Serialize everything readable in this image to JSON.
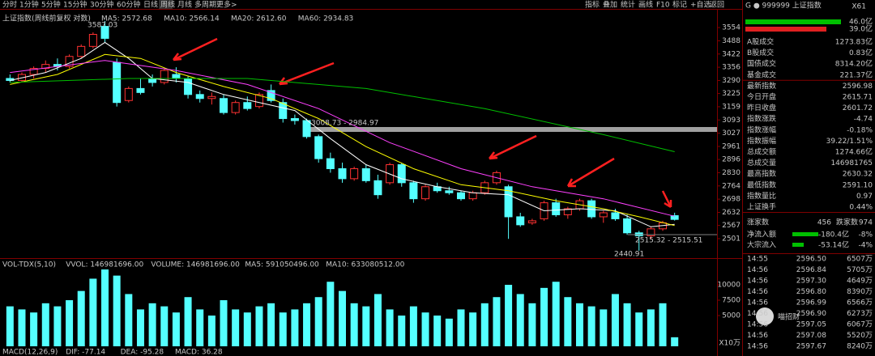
{
  "toolbar": {
    "left": [
      "分时",
      "1分钟",
      "5分钟",
      "15分钟",
      "30分钟",
      "60分钟",
      "日线",
      "周线",
      "月线",
      "多周期",
      "更多>"
    ],
    "active": 7,
    "right": [
      "指标",
      "叠加",
      "统计",
      "画线",
      "F10",
      "标记",
      "+自选",
      "返回"
    ]
  },
  "chart": {
    "title": "上证指数(周线前复权 对数)",
    "ma_labels": [
      {
        "text": "MA5: 2572.68",
        "color": "#ffffff"
      },
      {
        "text": "MA10: 2566.14",
        "color": "#ffff00"
      },
      {
        "text": "MA20: 2612.60",
        "color": "#ff40ff"
      },
      {
        "text": "MA60: 2934.83",
        "color": "#00e000"
      }
    ],
    "ylim": [
      2408,
      3643
    ],
    "yticks": [
      3554,
      3488,
      3422,
      3356,
      3290,
      3225,
      3159,
      3093,
      3027,
      2961,
      2896,
      2830,
      2764,
      2698,
      2632,
      2567,
      2501
    ],
    "candles": [
      [
        3300,
        3320,
        3280,
        3290
      ],
      [
        3290,
        3330,
        3285,
        3320
      ],
      [
        3320,
        3360,
        3300,
        3350
      ],
      [
        3350,
        3390,
        3330,
        3370
      ],
      [
        3370,
        3400,
        3340,
        3360
      ],
      [
        3360,
        3420,
        3350,
        3410
      ],
      [
        3410,
        3470,
        3400,
        3460
      ],
      [
        3460,
        3530,
        3450,
        3520
      ],
      [
        3560,
        3587.03,
        3480,
        3500
      ],
      [
        3380,
        3400,
        3160,
        3180
      ],
      [
        3190,
        3260,
        3180,
        3250
      ],
      [
        3250,
        3300,
        3220,
        3230
      ],
      [
        3300,
        3320,
        3260,
        3280
      ],
      [
        3280,
        3350,
        3270,
        3340
      ],
      [
        3320,
        3356,
        3280,
        3300
      ],
      [
        3300,
        3310,
        3200,
        3220
      ],
      [
        3220,
        3240,
        3180,
        3200
      ],
      [
        3200,
        3230,
        3170,
        3210
      ],
      [
        3200,
        3220,
        3120,
        3130
      ],
      [
        3130,
        3190,
        3120,
        3180
      ],
      [
        3180,
        3210,
        3140,
        3150
      ],
      [
        3160,
        3230,
        3150,
        3220
      ],
      [
        3240,
        3270,
        3180,
        3190
      ],
      [
        3180,
        3200,
        3080,
        3100
      ],
      [
        3100,
        3120,
        3070,
        3090
      ],
      [
        3090,
        3100,
        3000,
        3010
      ],
      [
        3010,
        3020,
        2880,
        2900
      ],
      [
        2900,
        2930,
        2830,
        2850
      ],
      [
        2850,
        2880,
        2780,
        2800
      ],
      [
        2800,
        2860,
        2790,
        2850
      ],
      [
        2850,
        2870,
        2780,
        2790
      ],
      [
        2790,
        2820,
        2700,
        2720
      ],
      [
        2780,
        2880,
        2770,
        2870
      ],
      [
        2870,
        2880,
        2760,
        2780
      ],
      [
        2780,
        2790,
        2680,
        2700
      ],
      [
        2700,
        2770,
        2690,
        2760
      ],
      [
        2760,
        2780,
        2730,
        2740
      ],
      [
        2740,
        2760,
        2720,
        2730
      ],
      [
        2730,
        2740,
        2690,
        2700
      ],
      [
        2700,
        2740,
        2690,
        2730
      ],
      [
        2730,
        2790,
        2720,
        2780
      ],
      [
        2780,
        2840,
        2770,
        2830
      ],
      [
        2760,
        2770,
        2500,
        2610
      ],
      [
        2610,
        2630,
        2560,
        2570
      ],
      [
        2580,
        2600,
        2570,
        2590
      ],
      [
        2600,
        2690,
        2590,
        2680
      ],
      [
        2680,
        2700,
        2610,
        2620
      ],
      [
        2620,
        2660,
        2600,
        2650
      ],
      [
        2650,
        2700,
        2640,
        2690
      ],
      [
        2690,
        2700,
        2600,
        2610
      ],
      [
        2610,
        2640,
        2580,
        2630
      ],
      [
        2630,
        2650,
        2590,
        2600
      ],
      [
        2600,
        2620,
        2520,
        2530
      ],
      [
        2530,
        2540,
        2440.91,
        2515.32
      ],
      [
        2515,
        2560,
        2500,
        2550
      ],
      [
        2550,
        2590,
        2540,
        2580
      ],
      [
        2615.71,
        2630.32,
        2591.1,
        2596.98
      ]
    ],
    "up_color": "#ff3232",
    "down_color": "#54ffff",
    "ma_lines": [
      {
        "color": "#ffffff",
        "points": [
          [
            0,
            3290
          ],
          [
            3,
            3330
          ],
          [
            6,
            3400
          ],
          [
            8,
            3480
          ],
          [
            10,
            3400
          ],
          [
            12,
            3300
          ],
          [
            15,
            3280
          ],
          [
            18,
            3220
          ],
          [
            21,
            3180
          ],
          [
            24,
            3140
          ],
          [
            27,
            3000
          ],
          [
            30,
            2870
          ],
          [
            33,
            2800
          ],
          [
            36,
            2760
          ],
          [
            39,
            2730
          ],
          [
            42,
            2720
          ],
          [
            45,
            2640
          ],
          [
            48,
            2650
          ],
          [
            51,
            2640
          ],
          [
            54,
            2560
          ],
          [
            56,
            2572.68
          ]
        ]
      },
      {
        "color": "#ffff00",
        "points": [
          [
            0,
            3270
          ],
          [
            4,
            3320
          ],
          [
            8,
            3420
          ],
          [
            11,
            3400
          ],
          [
            14,
            3330
          ],
          [
            18,
            3260
          ],
          [
            22,
            3200
          ],
          [
            26,
            3100
          ],
          [
            30,
            2960
          ],
          [
            34,
            2850
          ],
          [
            38,
            2770
          ],
          [
            42,
            2740
          ],
          [
            46,
            2690
          ],
          [
            50,
            2650
          ],
          [
            53,
            2610
          ],
          [
            56,
            2566.14
          ]
        ]
      },
      {
        "color": "#ff40ff",
        "points": [
          [
            0,
            3330
          ],
          [
            8,
            3390
          ],
          [
            14,
            3340
          ],
          [
            20,
            3270
          ],
          [
            26,
            3150
          ],
          [
            32,
            2980
          ],
          [
            38,
            2850
          ],
          [
            44,
            2760
          ],
          [
            50,
            2700
          ],
          [
            56,
            2612.6
          ]
        ]
      },
      {
        "color": "#00c000",
        "points": [
          [
            0,
            3280
          ],
          [
            10,
            3300
          ],
          [
            20,
            3300
          ],
          [
            30,
            3250
          ],
          [
            40,
            3150
          ],
          [
            50,
            3020
          ],
          [
            56,
            2934.83
          ]
        ]
      }
    ],
    "annotations": [
      "3587.03",
      "3008.73 - 2984.97",
      "2515.32 - 2515.51",
      "2440.91"
    ]
  },
  "volume": {
    "header": [
      "VOL-TDX(5,10)",
      "VVOL: 146981696.00",
      "VOLUME: 146981696.00",
      "MA5: 591050496.00",
      "MA10: 633080512.00"
    ],
    "ylim": [
      0,
      12900
    ],
    "yticks": [
      10000,
      7500,
      5000
    ],
    "unit": "X10万",
    "color": "#54ffff",
    "values": [
      6500,
      6000,
      5500,
      7000,
      6500,
      7500,
      9000,
      11000,
      12500,
      11500,
      8500,
      6000,
      7000,
      6500,
      5500,
      8000,
      6000,
      5000,
      7500,
      6000,
      5500,
      6500,
      7000,
      5500,
      6000,
      7000,
      8000,
      10500,
      9000,
      7000,
      6500,
      8500,
      6000,
      5000,
      6500,
      5500,
      5000,
      4500,
      6000,
      5500,
      7000,
      8000,
      10000,
      8500,
      7000,
      9500,
      10500,
      8000,
      7000,
      6500,
      6000,
      8500,
      7000,
      5500,
      6000,
      7000,
      1470
    ]
  },
  "macd": [
    "MACD(12,26,9)",
    "DIF: -77.14",
    "DEA: -95.28",
    "MACD: 36.28"
  ],
  "panel": {
    "code": "G ● 999999 上证指数",
    "tag": "X61",
    "bars": [
      "46.0亿",
      "39.0亿"
    ],
    "rows": [
      [
        "A股成交",
        "1273.83亿",
        "#ffffff"
      ],
      [
        "B股成交",
        "0.83亿",
        "#ffffff"
      ],
      [
        "国债成交",
        "8314.20亿",
        "#ffffff"
      ],
      [
        "基金成交",
        "221.37亿",
        "#ffffff"
      ],
      [
        "最新指数",
        "2596.98",
        "#00e000"
      ],
      [
        "今日开盘",
        "2615.71",
        "#ff3232"
      ],
      [
        "昨日收盘",
        "2601.72",
        "#ffffff"
      ],
      [
        "指数涨跌",
        "-4.74",
        "#00e000"
      ],
      [
        "指数涨幅",
        "-0.18%",
        "#00e000"
      ],
      [
        "指数振幅",
        "39.22/1.51%",
        "#ffffff"
      ],
      [
        "总成交额",
        "1274.66亿",
        "#ffffff"
      ],
      [
        "总成交量",
        "146981765",
        "#ffffff"
      ],
      [
        "最高指数",
        "2630.32",
        "#ff3232"
      ],
      [
        "最低指数",
        "2591.10",
        "#00e000"
      ],
      [
        "指数量比",
        "0.97",
        "#ffffff"
      ],
      [
        "上证换手",
        "0.44%",
        "#ffffff"
      ]
    ],
    "breadth": [
      "涨家数",
      "456",
      "跌家数",
      "974"
    ],
    "flows": [
      [
        "净流入额",
        "-180.4亿",
        "-8%"
      ],
      [
        "大宗流入",
        "-53.14亿",
        "-4%"
      ]
    ],
    "trades": [
      [
        "14:55",
        "2596.50",
        "6507万",
        "#00e000"
      ],
      [
        "14:56",
        "2596.84",
        "5705万",
        "#00e000"
      ],
      [
        "14:56",
        "2597.30",
        "4649万",
        "#ff3232"
      ],
      [
        "14:56",
        "2596.80",
        "8390万",
        "#00e000"
      ],
      [
        "14:56",
        "2596.99",
        "6566万",
        "#ff3232"
      ],
      [
        "14:56",
        "2596.90",
        "6273万",
        "#00e000"
      ],
      [
        "14:56",
        "2597.05",
        "6067万",
        "#ff3232"
      ],
      [
        "14:56",
        "2597.08",
        "5520万",
        "#ff3232"
      ],
      [
        "14:56",
        "2597.67",
        "8240万",
        "#ff3232"
      ]
    ]
  },
  "watermark": "喵招财"
}
